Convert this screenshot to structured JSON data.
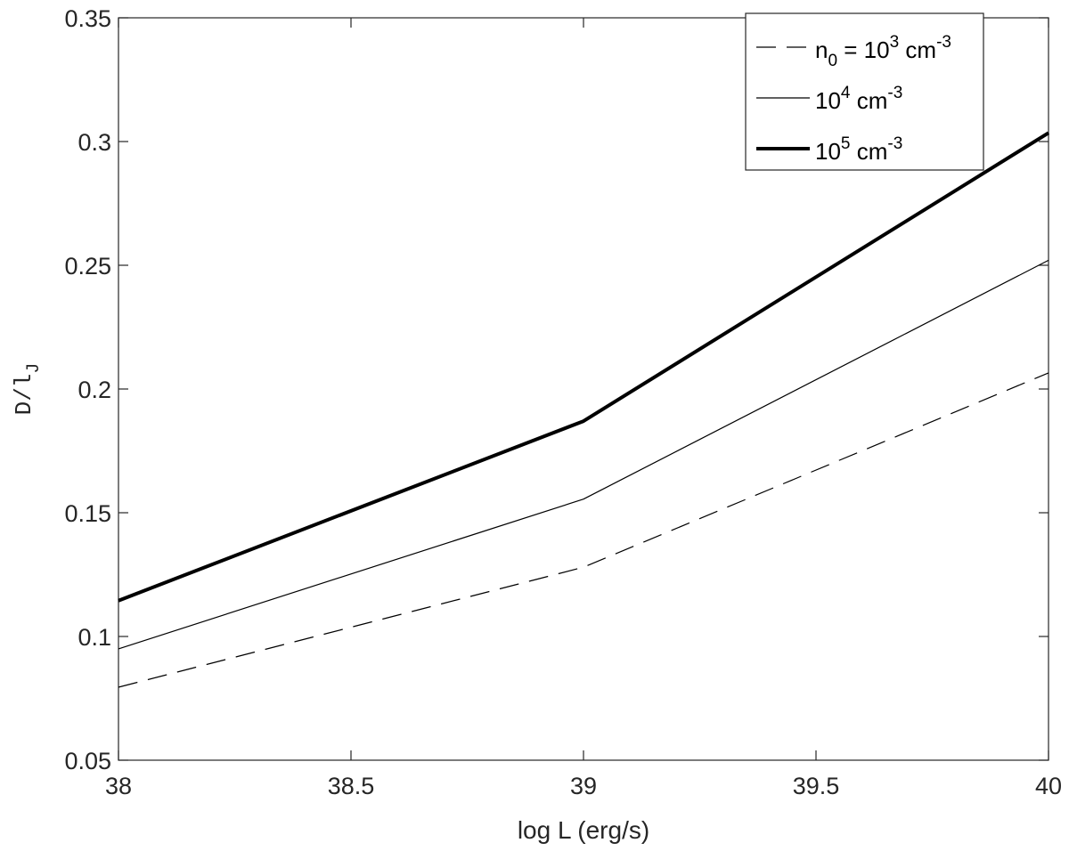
{
  "chart_data": {
    "type": "line",
    "xlabel": "log L  (erg/s)",
    "ylabel": {
      "main": "D/l",
      "sub": "J"
    },
    "xlim": [
      38,
      40
    ],
    "ylim": [
      0.05,
      0.35
    ],
    "xticks": [
      38,
      38.5,
      39,
      39.5,
      40
    ],
    "xtick_labels": [
      "38",
      "38.5",
      "39",
      "39.5",
      "40"
    ],
    "yticks": [
      0.05,
      0.1,
      0.15,
      0.2,
      0.25,
      0.3,
      0.35
    ],
    "ytick_labels": [
      "0.05",
      "0.1",
      "0.15",
      "0.2",
      "0.25",
      "0.3",
      "0.35"
    ],
    "grid": false,
    "legend_position": "top-right",
    "x": [
      38,
      39,
      40
    ],
    "series": [
      {
        "name": "n0 = 10^3 cm^-3",
        "legend": {
          "prefix": "n",
          "prefix_sub": "0",
          "mid": " = 10",
          "exp": "3",
          "unit": " cm",
          "unit_exp": "-3"
        },
        "style": "dashed",
        "weight": "thin",
        "color": "#000000",
        "values": [
          0.0795,
          0.128,
          0.2065
        ]
      },
      {
        "name": "10^4 cm^-3",
        "legend": {
          "prefix": "",
          "prefix_sub": "",
          "mid": "10",
          "exp": "4",
          "unit": " cm",
          "unit_exp": "-3"
        },
        "style": "solid",
        "weight": "thin",
        "color": "#000000",
        "values": [
          0.095,
          0.1555,
          0.252
        ]
      },
      {
        "name": "10^5 cm^-3",
        "legend": {
          "prefix": "",
          "prefix_sub": "",
          "mid": "10",
          "exp": "5",
          "unit": " cm",
          "unit_exp": "-3"
        },
        "style": "solid",
        "weight": "thick",
        "color": "#000000",
        "values": [
          0.1145,
          0.187,
          0.3035
        ]
      }
    ]
  }
}
